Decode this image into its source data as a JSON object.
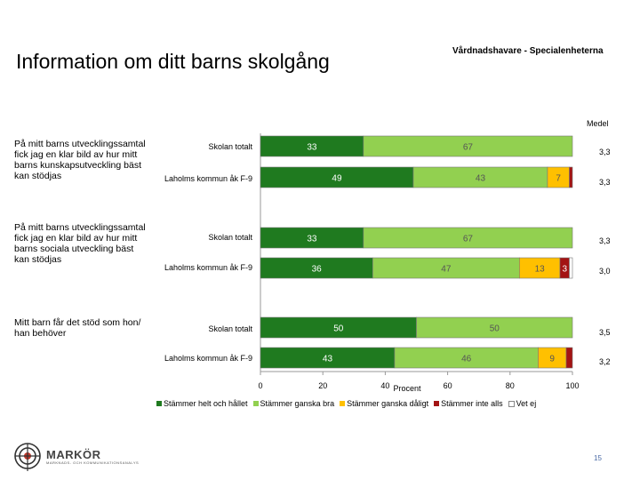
{
  "header": {
    "title": "Information om ditt barns skolgång",
    "subtitle": "Vårdnadshavare - Specialenheterna",
    "medel_label": "Medel"
  },
  "questions": [
    "På mitt barns utvecklingssamtal fick jag en klar bild av hur mitt barns kunskapsutveckling bäst kan stödjas",
    "På mitt barns utvecklingssamtal fick jag en klar bild av hur mitt barns sociala utveckling bäst kan stödjas",
    "Mitt barn får det stöd som hon/ han behöver"
  ],
  "row_labels": [
    "Skolan totalt",
    "Laholms kommun åk F-9",
    "Skolan totalt",
    "Laholms kommun åk F-9",
    "Skolan totalt",
    "Laholms kommun åk F-9"
  ],
  "medel_values": [
    "3,3",
    "3,3",
    "3,3",
    "3,0",
    "3,5",
    "3,2"
  ],
  "colors": {
    "stammer_helt": "#1f7a1f",
    "stammer_ganska_bra": "#92d050",
    "stammer_ganska_daligt": "#ffc000",
    "stammer_inte_alls": "#a31414",
    "vet_ej": "#ffffff",
    "label_on_dark": "#ffffff",
    "label_on_light": "#555555"
  },
  "chart_data": {
    "type": "bar",
    "orientation": "horizontal",
    "stacked": true,
    "xlabel": "Procent",
    "xlim": [
      0,
      100
    ],
    "xticks": [
      "0",
      "20",
      "40",
      "60",
      "80",
      "100"
    ],
    "categories": [
      "Skolan totalt",
      "Laholms kommun åk F-9",
      "Skolan totalt",
      "Laholms kommun åk F-9",
      "Skolan totalt",
      "Laholms kommun åk F-9"
    ],
    "series": [
      {
        "name": "Stämmer helt och hållet",
        "values": [
          33,
          49,
          33,
          36,
          50,
          43
        ],
        "labels": [
          "33",
          "49",
          "33",
          "36",
          "50",
          "43"
        ]
      },
      {
        "name": "Stämmer ganska bra",
        "values": [
          67,
          43,
          67,
          47,
          50,
          46
        ],
        "labels": [
          "67",
          "43",
          "67",
          "47",
          "50",
          "46"
        ]
      },
      {
        "name": "Stämmer ganska dåligt",
        "values": [
          0,
          7,
          0,
          13,
          0,
          9
        ],
        "labels": [
          "",
          "7",
          "",
          "13",
          "",
          "9"
        ]
      },
      {
        "name": "Stämmer inte alls",
        "values": [
          0,
          1,
          0,
          3,
          0,
          2
        ],
        "labels": [
          "",
          "",
          "",
          "3",
          "",
          ""
        ]
      },
      {
        "name": "Vet ej",
        "values": [
          0,
          0,
          0,
          1,
          0,
          0
        ],
        "labels": [
          "",
          "",
          "",
          "",
          "",
          ""
        ]
      }
    ]
  },
  "legend": [
    "Stämmer helt och hållet",
    "Stämmer ganska bra",
    "Stämmer ganska dåligt",
    "Stämmer inte alls",
    "Vet ej"
  ],
  "footer": {
    "logo_text": "MARKÖR",
    "logo_tagline": "MARKNADS- OCH KOMMUNIKATIONSANALYS",
    "page_number": "15"
  }
}
